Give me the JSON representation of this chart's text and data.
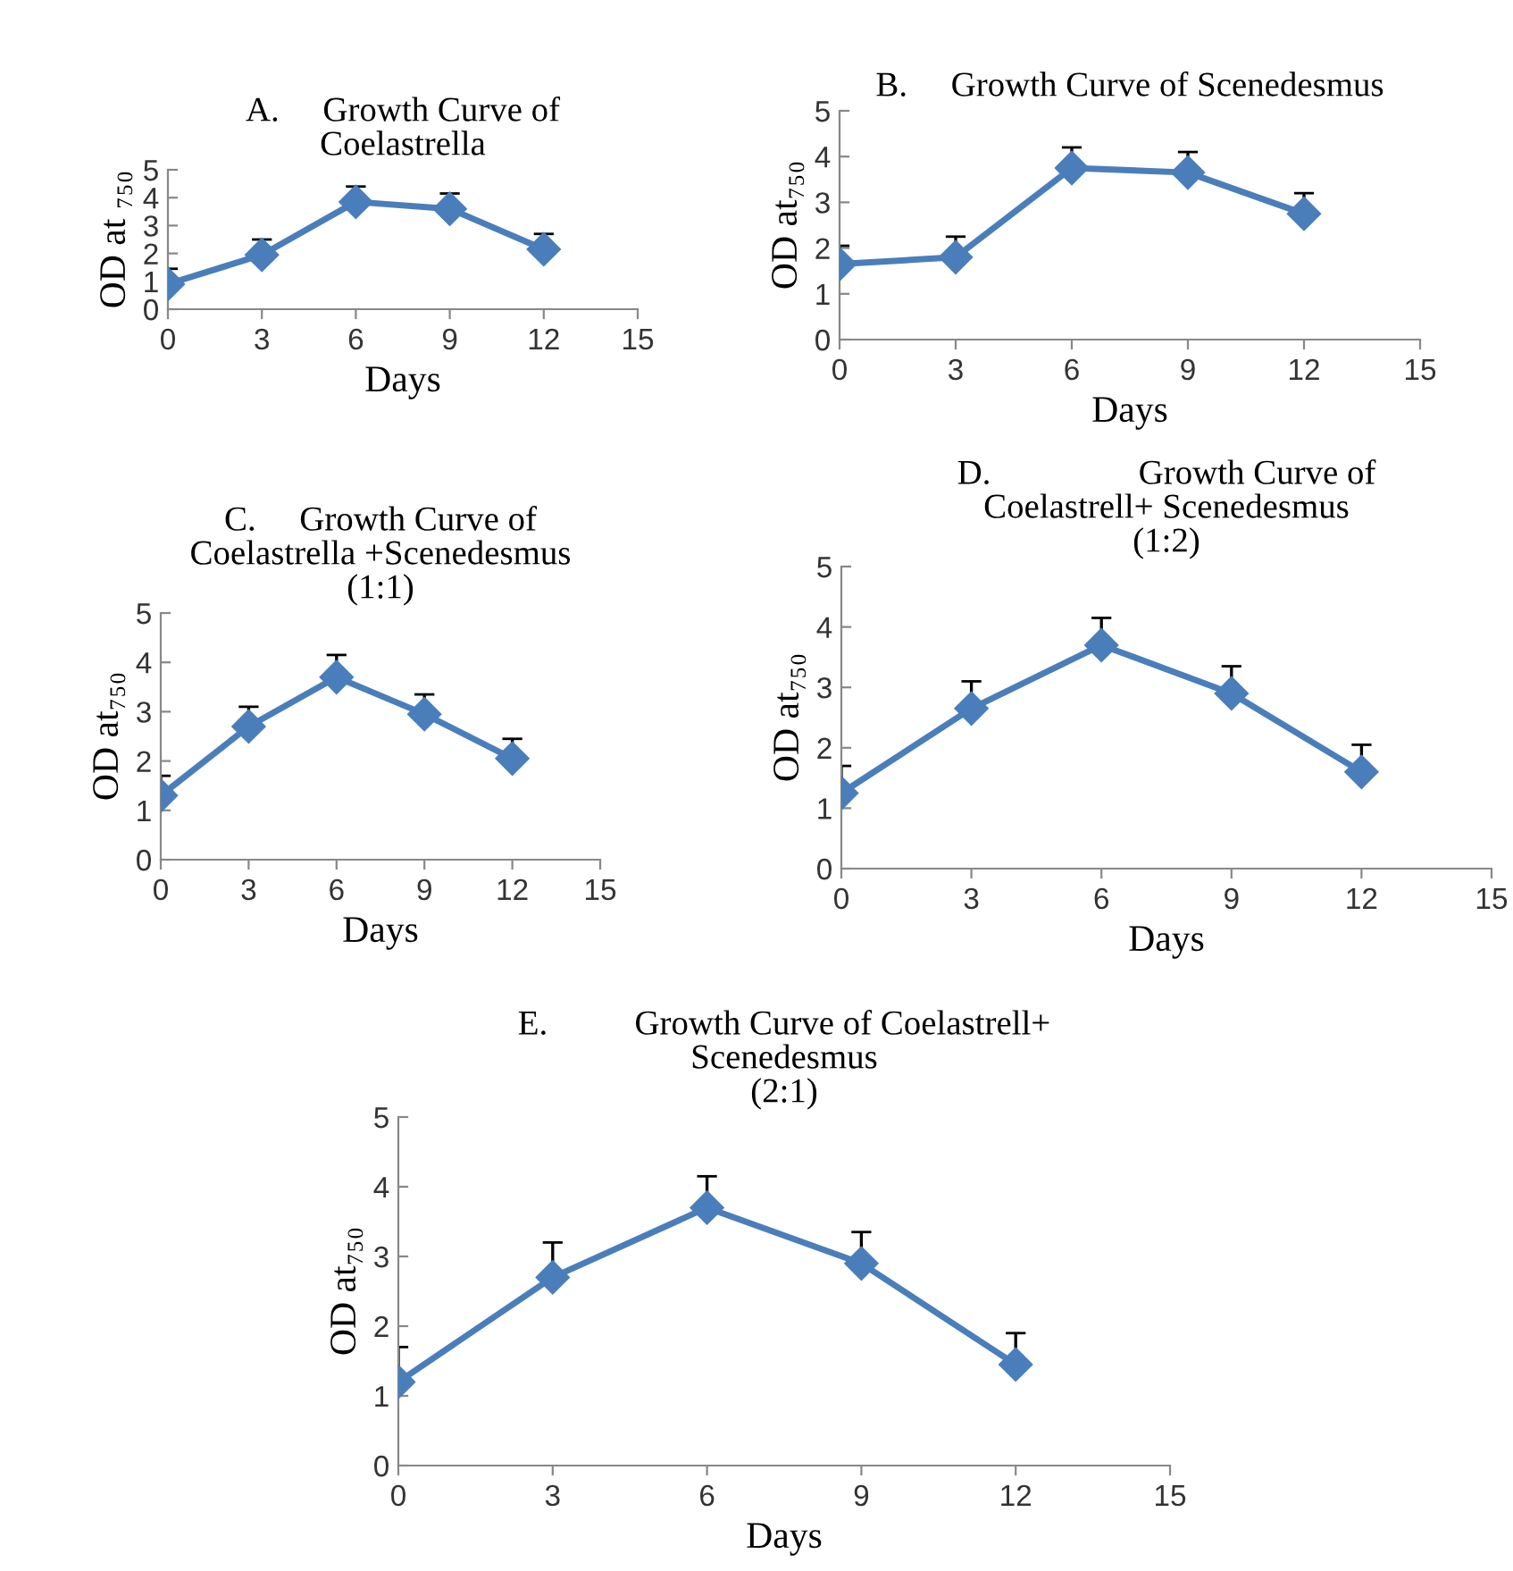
{
  "chart_data": [
    {
      "type": "line",
      "title": "A.     Growth Curve of\nCoelastrella",
      "xlabel": "Days",
      "ylabel": "OD at ₇₅₀",
      "x": [
        0,
        3,
        6,
        9,
        12
      ],
      "series": [
        {
          "color": "#4a7ebb",
          "values": [
            0.9,
            1.95,
            3.85,
            3.6,
            2.15
          ],
          "errors": [
            [
              0.9,
              1.45
            ],
            [
              1.95,
              2.5
            ],
            [
              3.85,
              4.4
            ],
            [
              3.6,
              4.15
            ],
            [
              2.15,
              2.7
            ]
          ]
        }
      ],
      "xlim": [
        0,
        15
      ],
      "xticks": [
        0,
        3,
        6,
        9,
        12,
        15
      ],
      "ylim": [
        0,
        5
      ],
      "yticks": [
        0,
        1,
        2,
        3,
        4,
        5
      ],
      "marker": "diamond",
      "line_style": "solid",
      "grid": false,
      "legend": false
    },
    {
      "type": "line",
      "title": "B.     Growth Curve of Scenedesmus",
      "xlabel": "Days",
      "ylabel": "OD at₇₅₀",
      "x": [
        0,
        3,
        6,
        9,
        12
      ],
      "series": [
        {
          "color": "#4a7ebb",
          "values": [
            1.65,
            1.8,
            3.75,
            3.65,
            2.75
          ],
          "errors": [
            [
              1.65,
              2.05
            ],
            [
              1.8,
              2.25
            ],
            [
              3.75,
              4.2
            ],
            [
              3.65,
              4.1
            ],
            [
              2.75,
              3.2
            ]
          ]
        }
      ],
      "xlim": [
        0,
        15
      ],
      "xticks": [
        0,
        3,
        6,
        9,
        12,
        15
      ],
      "ylim": [
        0,
        5
      ],
      "yticks": [
        0,
        1,
        2,
        3,
        4,
        5
      ],
      "marker": "diamond",
      "line_style": "solid",
      "grid": false,
      "legend": false
    },
    {
      "type": "line",
      "title": "C.     Growth Curve of\nCoelastrella +Scenedesmus\n(1:1)",
      "xlabel": "Days",
      "ylabel": "OD at₇₅₀",
      "x": [
        0,
        3,
        6,
        9,
        12
      ],
      "series": [
        {
          "color": "#4a7ebb",
          "values": [
            1.3,
            2.7,
            3.7,
            2.95,
            2.05
          ],
          "errors": [
            [
              1.3,
              1.7
            ],
            [
              2.7,
              3.1
            ],
            [
              3.7,
              4.15
            ],
            [
              2.95,
              3.35
            ],
            [
              2.05,
              2.45
            ]
          ]
        }
      ],
      "xlim": [
        0,
        15
      ],
      "xticks": [
        0,
        3,
        6,
        9,
        12,
        15
      ],
      "ylim": [
        0,
        5
      ],
      "yticks": [
        0,
        1,
        2,
        3,
        4,
        5
      ],
      "marker": "diamond",
      "line_style": "solid",
      "grid": false,
      "legend": false
    },
    {
      "type": "line",
      "title": "D.                 Growth Curve of\nCoelastrell+ Scenedesmus\n(1:2)",
      "xlabel": "Days",
      "ylabel": "OD at₇₅₀",
      "x": [
        0,
        3,
        6,
        9,
        12
      ],
      "series": [
        {
          "color": "#4a7ebb",
          "values": [
            1.25,
            2.65,
            3.7,
            2.9,
            1.6
          ],
          "errors": [
            [
              1.25,
              1.7
            ],
            [
              2.65,
              3.1
            ],
            [
              3.7,
              4.15
            ],
            [
              2.9,
              3.35
            ],
            [
              1.6,
              2.05
            ]
          ]
        }
      ],
      "xlim": [
        0,
        15
      ],
      "xticks": [
        0,
        3,
        6,
        9,
        12,
        15
      ],
      "ylim": [
        0,
        5
      ],
      "yticks": [
        0,
        1,
        2,
        3,
        4,
        5
      ],
      "marker": "diamond",
      "line_style": "solid",
      "grid": false,
      "legend": false
    },
    {
      "type": "line",
      "title": "E.          Growth Curve of Coelastrell+\nScenedesmus\n(2:1)",
      "xlabel": "Days",
      "ylabel": "OD at₇₅₀",
      "x": [
        0,
        3,
        6,
        9,
        12
      ],
      "series": [
        {
          "color": "#4a7ebb",
          "values": [
            1.2,
            2.7,
            3.7,
            2.9,
            1.45
          ],
          "errors": [
            [
              1.2,
              1.7
            ],
            [
              2.7,
              3.2
            ],
            [
              3.7,
              4.15
            ],
            [
              2.9,
              3.35
            ],
            [
              1.45,
              1.9
            ]
          ]
        }
      ],
      "xlim": [
        0,
        15
      ],
      "xticks": [
        0,
        3,
        6,
        9,
        12,
        15
      ],
      "ylim": [
        0,
        5
      ],
      "yticks": [
        0,
        1,
        2,
        3,
        4,
        5
      ],
      "marker": "diamond",
      "line_style": "solid",
      "grid": false,
      "legend": false
    }
  ]
}
